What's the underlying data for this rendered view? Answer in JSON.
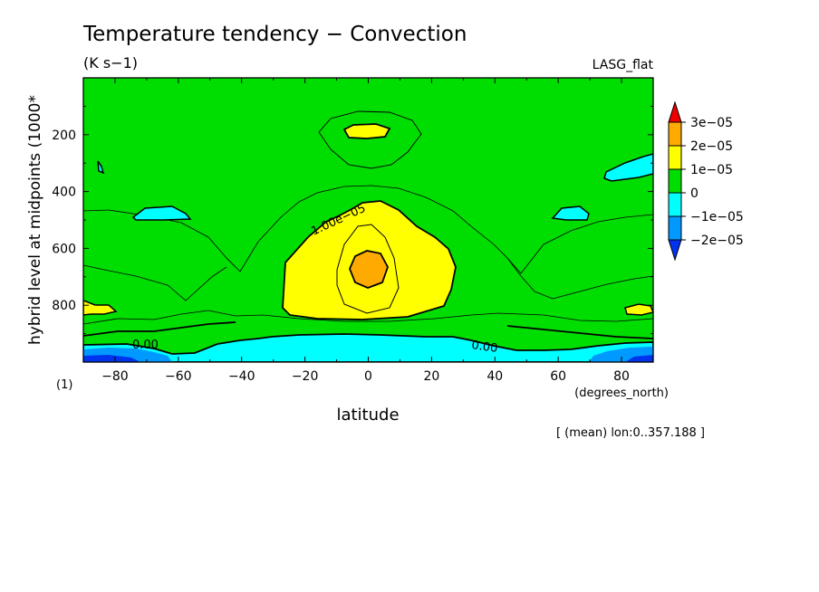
{
  "chart_data": {
    "type": "heatmap",
    "title": "Temperature tendency − Convection",
    "units": "(K s−1)",
    "dataset": "LASG_flat",
    "xlabel": "latitude",
    "xunits": "(degrees_north)",
    "ylabel": "hybrid level at midpoints (1000*",
    "yunits": "(1)",
    "footnote": "[ (mean) lon:0..357.188 ]",
    "xlim": [
      -90,
      90
    ],
    "ylim": [
      1000,
      0
    ],
    "xticks": [
      -80,
      -60,
      -40,
      -20,
      0,
      20,
      40,
      60,
      80
    ],
    "xtick_labels": [
      "−80",
      "−60",
      "−40",
      "−20",
      "0",
      "20",
      "40",
      "60",
      "80"
    ],
    "yticks": [
      200,
      400,
      600,
      800
    ],
    "ytick_labels": [
      "200",
      "400",
      "600",
      "800"
    ],
    "colorbar": {
      "labels": [
        "3e−05",
        "2e−05",
        "1e−05",
        "0",
        "−1e−05",
        "−2e−05"
      ],
      "colors": [
        "#ee0000",
        "#ffaa00",
        "#ffff00",
        "#00dd00",
        "#00ffff",
        "#0099ff",
        "#0033ee"
      ]
    },
    "contour_labels": [
      "1.00e−05",
      "0.00",
      "0.00"
    ]
  }
}
